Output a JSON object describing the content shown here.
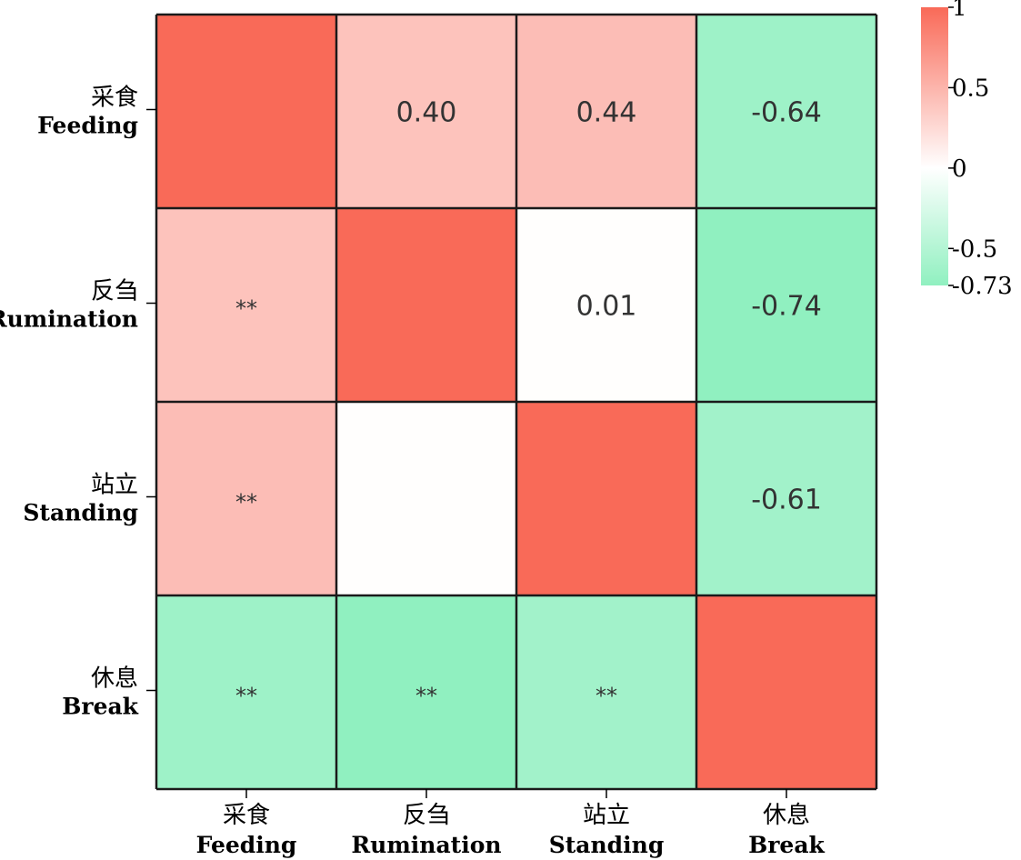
{
  "chart_data": {
    "type": "heatmap",
    "categories": [
      {
        "cn": "采食",
        "en": "Feeding"
      },
      {
        "cn": "反刍",
        "en": "Rumination"
      },
      {
        "cn": "站立",
        "en": "Standing"
      },
      {
        "cn": "休息",
        "en": "Break"
      }
    ],
    "correlation_matrix": [
      [
        1.0,
        0.4,
        0.44,
        -0.64
      ],
      [
        0.4,
        1.0,
        0.01,
        -0.74
      ],
      [
        0.44,
        0.01,
        1.0,
        -0.61
      ],
      [
        -0.64,
        -0.74,
        -0.61,
        1.0
      ]
    ],
    "cell_labels": [
      [
        "",
        "0.40",
        "0.44",
        "-0.64"
      ],
      [
        "**",
        "",
        "0.01",
        "-0.74"
      ],
      [
        "**",
        "",
        "",
        "-0.61"
      ],
      [
        "**",
        "**",
        "**",
        ""
      ]
    ],
    "colorbar": {
      "min": -0.73,
      "max": 1,
      "ticks": [
        1,
        0.5,
        0,
        -0.5,
        -0.73
      ],
      "tick_labels": [
        "1",
        "0.5",
        "0",
        "-0.5",
        "-0.73"
      ]
    },
    "colors": {
      "high": "#f96a58",
      "mid": "#ffffff",
      "low": "#90f0c0",
      "grid_line": "#1a1a1a"
    }
  }
}
